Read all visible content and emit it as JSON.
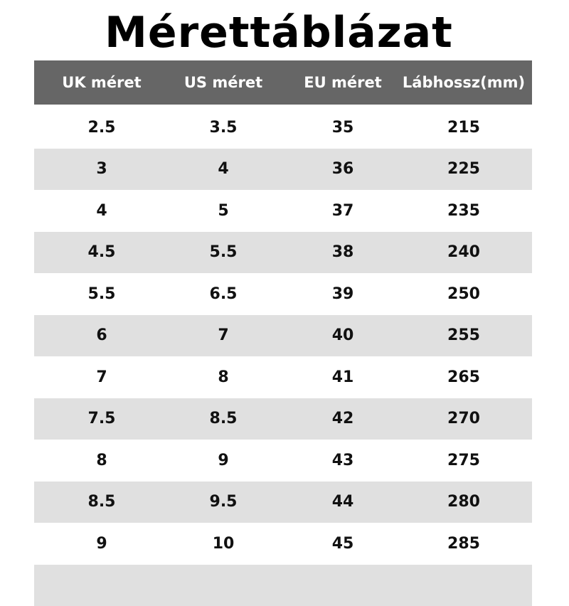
{
  "title": "Mérettáblázat",
  "colors": {
    "header_bg": "#666666",
    "alt_row_bg": "#e0e0e0"
  },
  "headers": [
    "UK méret",
    "US méret",
    "EU méret",
    "Lábhossz(mm)"
  ],
  "rows": [
    [
      "2.5",
      "3.5",
      "35",
      "215"
    ],
    [
      "3",
      "4",
      "36",
      "225"
    ],
    [
      "4",
      "5",
      "37",
      "235"
    ],
    [
      "4.5",
      "5.5",
      "38",
      "240"
    ],
    [
      "5.5",
      "6.5",
      "39",
      "250"
    ],
    [
      "6",
      "7",
      "40",
      "255"
    ],
    [
      "7",
      "8",
      "41",
      "265"
    ],
    [
      "7.5",
      "8.5",
      "42",
      "270"
    ],
    [
      "8",
      "9",
      "43",
      "275"
    ],
    [
      "8.5",
      "9.5",
      "44",
      "280"
    ],
    [
      "9",
      "10",
      "45",
      "285"
    ]
  ]
}
